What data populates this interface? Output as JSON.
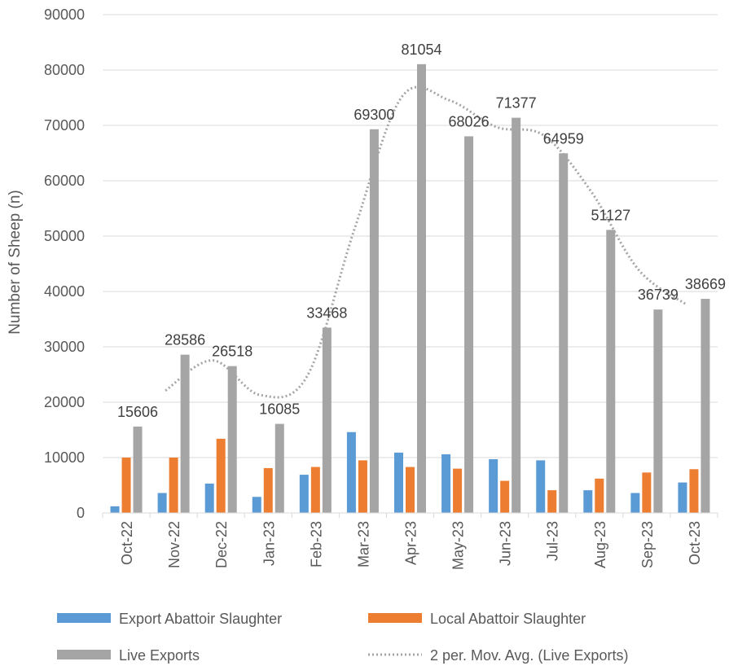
{
  "chart_data": {
    "type": "bar",
    "title": "",
    "xlabel": "",
    "ylabel": "Number of Sheep (n)",
    "ylim": [
      0,
      90000
    ],
    "ytick_step": 10000,
    "yticks": [
      "0",
      "10000",
      "20000",
      "30000",
      "40000",
      "50000",
      "60000",
      "70000",
      "80000",
      "90000"
    ],
    "grid": true,
    "legend_position": "bottom",
    "categories": [
      "Oct-22",
      "Nov-22",
      "Dec-22",
      "Jan-23",
      "Feb-23",
      "Mar-23",
      "Apr-23",
      "May-23",
      "Jun-23",
      "Jul-23",
      "Aug-23",
      "Sep-23",
      "Oct-23"
    ],
    "series": [
      {
        "name": "Export Abattoir Slaughter",
        "color": "#5B9BD5",
        "values": [
          1200,
          3600,
          5300,
          2900,
          6900,
          14600,
          10900,
          10600,
          9700,
          9500,
          4100,
          3600,
          5500
        ]
      },
      {
        "name": "Local Abattoir Slaughter",
        "color": "#ED7D31",
        "values": [
          10000,
          10000,
          13400,
          8100,
          8300,
          9500,
          8300,
          8000,
          5800,
          4100,
          6200,
          7300,
          7900
        ]
      },
      {
        "name": "Live Exports",
        "color": "#A5A5A5",
        "values": [
          15606,
          28586,
          26518,
          16085,
          33468,
          69300,
          81054,
          68026,
          71377,
          64959,
          51127,
          36739,
          38669
        ],
        "data_labels": [
          "15606",
          "28586",
          "26518",
          "16085",
          "33468",
          "69300",
          "81054",
          "68026",
          "71377",
          "64959",
          "51127",
          "36739",
          "38669"
        ]
      }
    ],
    "trendline": {
      "name": "2 per. Mov. Avg. (Live Exports)",
      "color": "#A5A5A5",
      "style": "dotted",
      "period": 2,
      "of_series": "Live Exports"
    }
  }
}
